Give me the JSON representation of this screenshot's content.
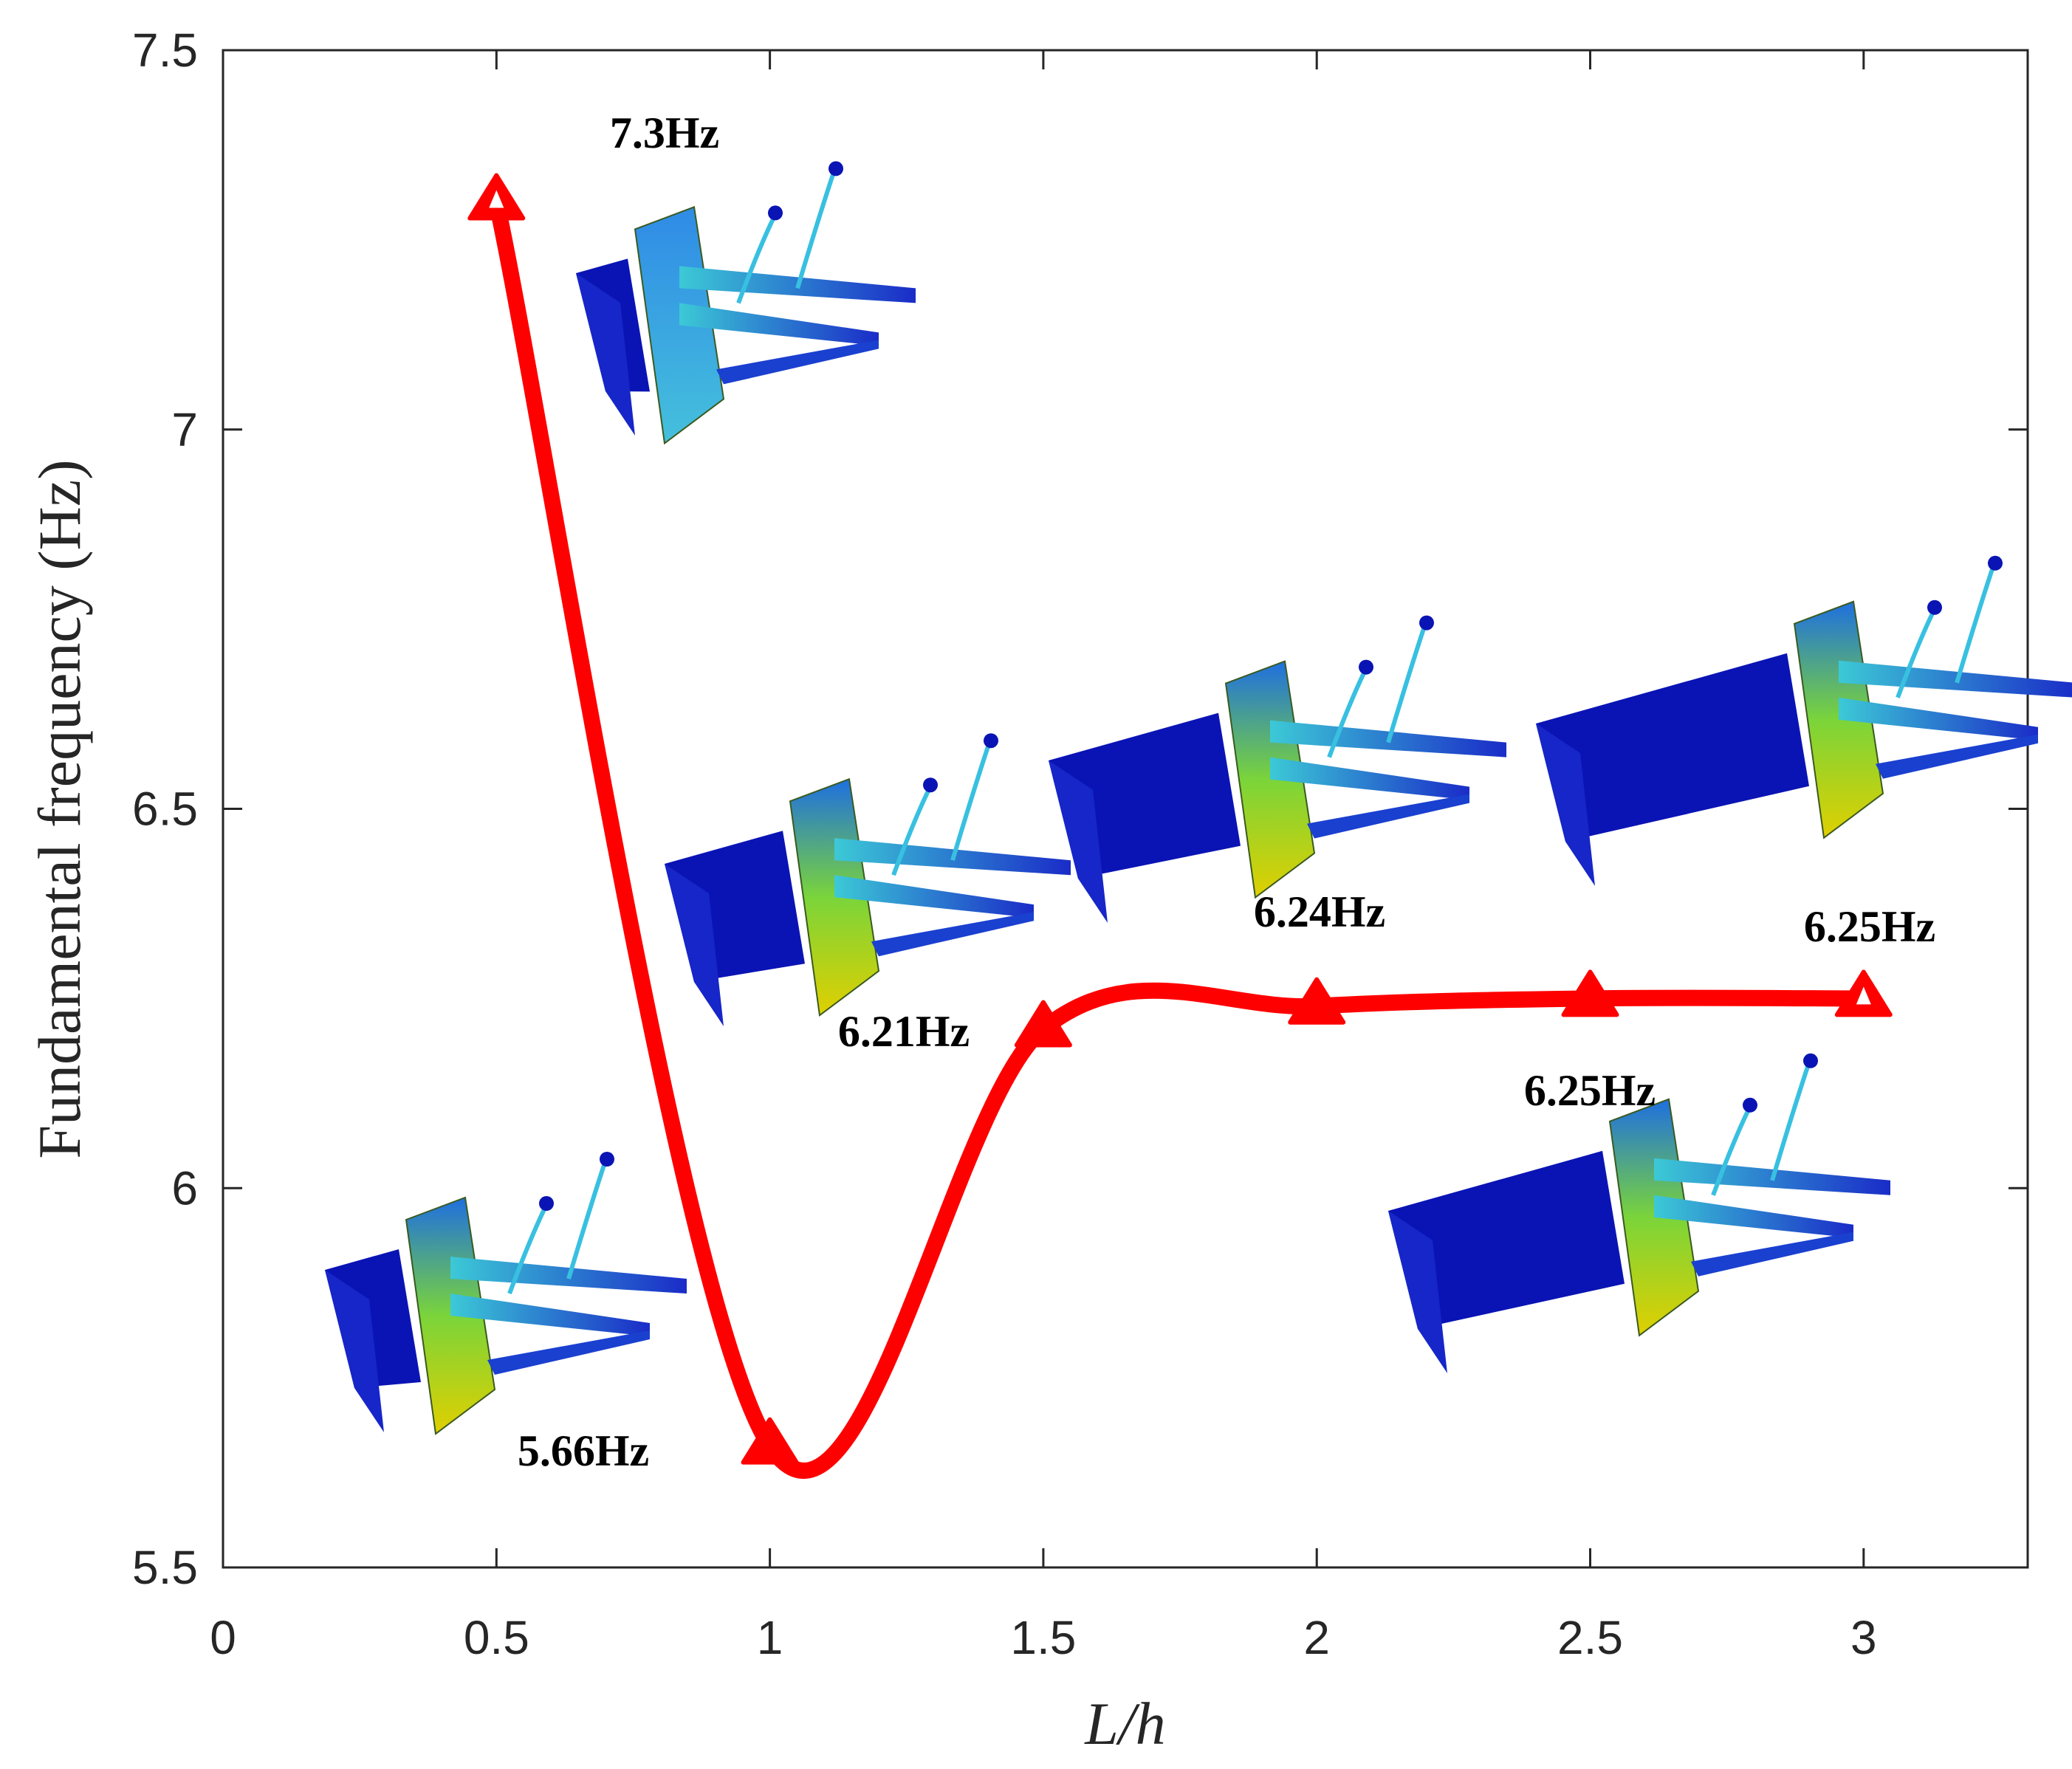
{
  "chart_data": {
    "type": "line",
    "x_ticks": [
      "0",
      "0.5",
      "1",
      "1.5",
      "2",
      "2.5",
      "3"
    ],
    "y_ticks": [
      "5.5",
      "6",
      "6.5",
      "7",
      "7.5"
    ],
    "xlim": [
      0,
      3.3
    ],
    "ylim": [
      5.5,
      7.5
    ],
    "xlabel": "L/h",
    "ylabel": "Fundamental frequency (Hz)",
    "grid": false,
    "series": [
      {
        "x": [
          0.5,
          1,
          1.5,
          2,
          2.5,
          3
        ],
        "y": [
          7.3,
          5.66,
          6.21,
          6.24,
          6.25,
          6.25
        ],
        "color": "#ff0000",
        "marker": "triangle"
      }
    ],
    "annotations": [
      {
        "text": "7.3Hz",
        "x": 0.5,
        "y": 7.3
      },
      {
        "text": "5.66Hz",
        "x": 1,
        "y": 5.66
      },
      {
        "text": "6.21Hz",
        "x": 1.5,
        "y": 6.21
      },
      {
        "text": "6.24Hz",
        "x": 2,
        "y": 6.24
      },
      {
        "text": "6.25Hz",
        "x": 2.5,
        "y": 6.25
      },
      {
        "text": "6.25Hz",
        "x": 3,
        "y": 6.25
      }
    ]
  },
  "colors": {
    "series": "#ff0000",
    "axes": "#262626",
    "model_dark": "#0a14b4",
    "model_mid": "#2a8fe0",
    "model_green": "#6fd23a",
    "model_yellow": "#d9d400"
  },
  "inset_icons": [
    "fe-mode-shape-model",
    "fe-mode-shape-model",
    "fe-mode-shape-model",
    "fe-mode-shape-model",
    "fe-mode-shape-model",
    "fe-mode-shape-model"
  ]
}
